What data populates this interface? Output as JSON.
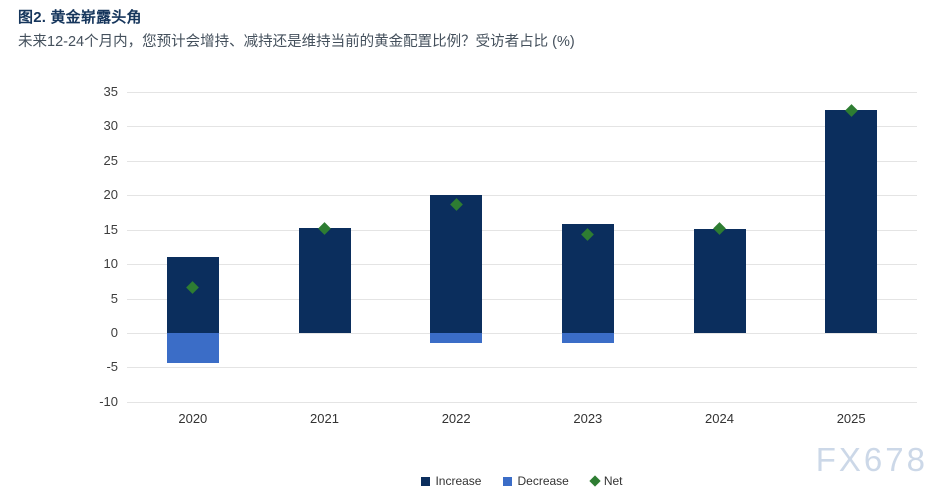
{
  "header": {
    "title": "图2. 黄金崭露头角",
    "subtitle": "未来12-24个月内，您预计会增持、减持还是维持当前的黄金配置比例？受访者占比 (%)"
  },
  "watermark": "FX678",
  "colors": {
    "increase": "#0b2e5d",
    "decrease": "#3b6dc7",
    "net": "#2e7d32",
    "gridline": "#e4e4e4",
    "axis_text": "#3d3d3d",
    "title_text": "#16365c",
    "subtitle_text": "#44505c",
    "watermark_text": "#ccd8e8"
  },
  "chart_data": {
    "type": "bar",
    "stacked": true,
    "title": "图2. 黄金崭露头角",
    "subtitle": "未来12-24个月内，您预计会增持、减持还是维持当前的黄金配置比例？受访者占比 (%)",
    "categories": [
      "2020",
      "2021",
      "2022",
      "2023",
      "2024",
      "2025"
    ],
    "series": [
      {
        "name": "Increase",
        "type": "bar",
        "values": [
          11,
          15.2,
          20.1,
          15.8,
          15.1,
          32.3
        ]
      },
      {
        "name": "Decrease",
        "type": "bar",
        "values": [
          -4.4,
          0,
          -1.5,
          -1.5,
          0,
          0
        ]
      },
      {
        "name": "Net",
        "type": "scatter",
        "marker": "diamond",
        "values": [
          6.6,
          15.2,
          18.6,
          14.3,
          15.1,
          32.3
        ]
      }
    ],
    "xlabel": "",
    "ylabel": "",
    "ylim": [
      -10,
      35
    ],
    "ytick_step": 5,
    "grid": true,
    "legend_position": "bottom",
    "legend_labels": [
      "Increase",
      "Decrease",
      "Net"
    ]
  }
}
